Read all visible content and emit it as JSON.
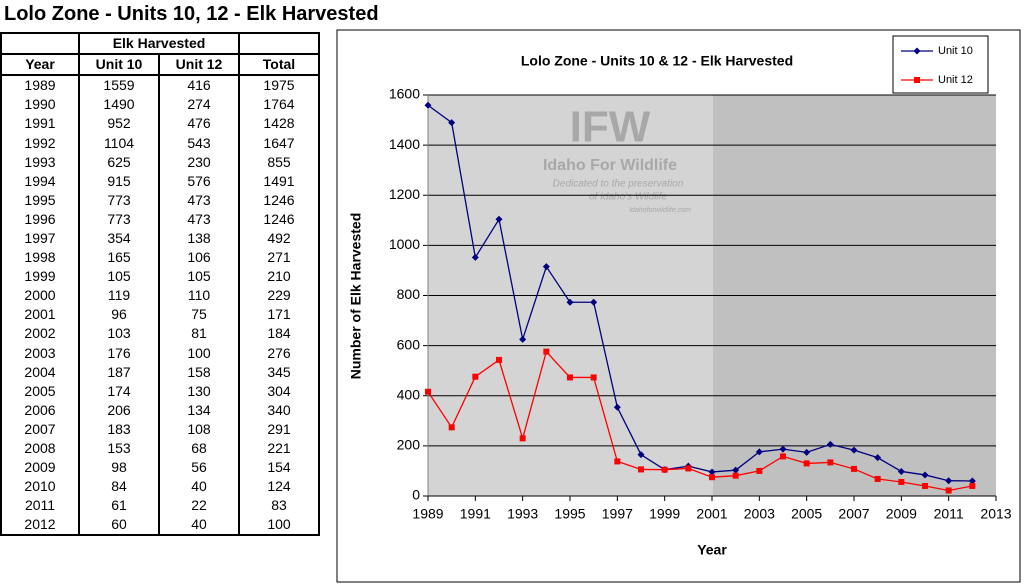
{
  "header": {
    "title": "Lolo Zone - Units 10, 12 - Elk Harvested"
  },
  "table": {
    "group_header": "Elk Harvested",
    "columns": [
      "Year",
      "Unit 10",
      "Unit 12",
      "Total"
    ],
    "rows": [
      [
        1989,
        1559,
        416,
        1975
      ],
      [
        1990,
        1490,
        274,
        1764
      ],
      [
        1991,
        952,
        476,
        1428
      ],
      [
        1992,
        1104,
        543,
        1647
      ],
      [
        1993,
        625,
        230,
        855
      ],
      [
        1994,
        915,
        576,
        1491
      ],
      [
        1995,
        773,
        473,
        1246
      ],
      [
        1996,
        773,
        473,
        1246
      ],
      [
        1997,
        354,
        138,
        492
      ],
      [
        1998,
        165,
        106,
        271
      ],
      [
        1999,
        105,
        105,
        210
      ],
      [
        2000,
        119,
        110,
        229
      ],
      [
        2001,
        96,
        75,
        171
      ],
      [
        2002,
        103,
        81,
        184
      ],
      [
        2003,
        176,
        100,
        276
      ],
      [
        2004,
        187,
        158,
        345
      ],
      [
        2005,
        174,
        130,
        304
      ],
      [
        2006,
        206,
        134,
        340
      ],
      [
        2007,
        183,
        108,
        291
      ],
      [
        2008,
        153,
        68,
        221
      ],
      [
        2009,
        98,
        56,
        154
      ],
      [
        2010,
        84,
        40,
        124
      ],
      [
        2011,
        61,
        22,
        83
      ],
      [
        2012,
        60,
        40,
        100
      ]
    ]
  },
  "chart_data": {
    "type": "line",
    "title": "Lolo Zone - Units 10 & 12 - Elk Harvested",
    "x_label": "Year",
    "y_label": "Number of Elk Harvested",
    "watermark": [
      "IFW",
      "Idaho For Wildlife",
      "Dedicated to the preservation",
      "of Idaho's Wildlife",
      "Idahoforwildlife.com"
    ],
    "x": [
      1989,
      1990,
      1991,
      1992,
      1993,
      1994,
      1995,
      1996,
      1997,
      1998,
      1999,
      2000,
      2001,
      2002,
      2003,
      2004,
      2005,
      2006,
      2007,
      2008,
      2009,
      2010,
      2011,
      2012
    ],
    "series": [
      {
        "name": "Unit 10",
        "color": "#000080",
        "marker": "diamond",
        "values": [
          1559,
          1490,
          952,
          1104,
          625,
          915,
          773,
          773,
          354,
          165,
          105,
          119,
          96,
          103,
          176,
          187,
          174,
          206,
          183,
          153,
          98,
          84,
          61,
          60
        ]
      },
      {
        "name": "Unit 12",
        "color": "#ff0000",
        "marker": "square",
        "values": [
          416,
          274,
          476,
          543,
          230,
          576,
          473,
          473,
          138,
          106,
          105,
          110,
          75,
          81,
          100,
          158,
          130,
          134,
          108,
          68,
          56,
          40,
          22,
          40
        ]
      }
    ],
    "xlim": [
      1989,
      2013
    ],
    "xticks": [
      1989,
      1991,
      1993,
      1995,
      1997,
      1999,
      2001,
      2003,
      2005,
      2007,
      2009,
      2011,
      2013
    ],
    "ylim": [
      0,
      1600
    ],
    "yticks": [
      0,
      200,
      400,
      600,
      800,
      1000,
      1200,
      1400,
      1600
    ],
    "grid": true,
    "legend": "top-right",
    "plot_color": "#c0c0c0"
  }
}
